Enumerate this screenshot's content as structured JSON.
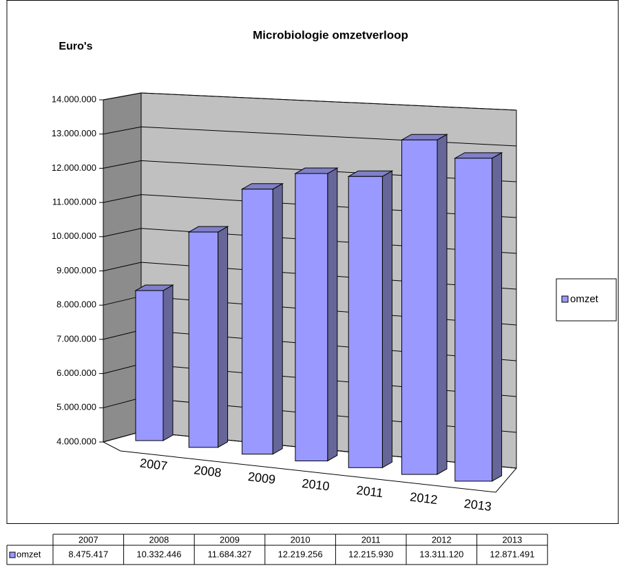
{
  "chart_data": {
    "type": "bar3d",
    "title": "Microbiologie omzetverloop",
    "y_label": "Euro's",
    "categories": [
      "2007",
      "2008",
      "2009",
      "2010",
      "2011",
      "2012",
      "2013"
    ],
    "series": [
      {
        "name": "omzet",
        "color": "#9999ff",
        "values": [
          8475417,
          10332446,
          11684327,
          12219256,
          12215930,
          13311120,
          12871491
        ],
        "value_labels": [
          "8.475.417",
          "10.332.446",
          "11.684.327",
          "12.219.256",
          "12.215.930",
          "13.311.120",
          "12.871.491"
        ]
      }
    ],
    "ylim": [
      4000000,
      14000000
    ],
    "yticks": [
      {
        "value": 4000000,
        "label": "4.000.000"
      },
      {
        "value": 5000000,
        "label": "5.000.000"
      },
      {
        "value": 6000000,
        "label": "6.000.000"
      },
      {
        "value": 7000000,
        "label": "7.000.000"
      },
      {
        "value": 8000000,
        "label": "8.000.000"
      },
      {
        "value": 9000000,
        "label": "9.000.000"
      },
      {
        "value": 10000000,
        "label": "10.000.000"
      },
      {
        "value": 11000000,
        "label": "11.000.000"
      },
      {
        "value": 12000000,
        "label": "12.000.000"
      },
      {
        "value": 13000000,
        "label": "13.000.000"
      },
      {
        "value": 14000000,
        "label": "14.000.000"
      }
    ],
    "grid": true,
    "legend": "right",
    "data_table": true
  }
}
